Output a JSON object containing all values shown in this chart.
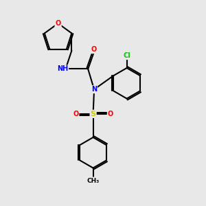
{
  "bg_color": "#e8e8e8",
  "bond_color": "#000000",
  "atom_colors": {
    "O": "#ff0000",
    "N": "#0000ff",
    "S": "#cccc00",
    "Cl": "#00cc00",
    "H": "#808080",
    "C": "#000000"
  },
  "title": "",
  "figsize": [
    3.0,
    3.0
  ],
  "dpi": 100
}
